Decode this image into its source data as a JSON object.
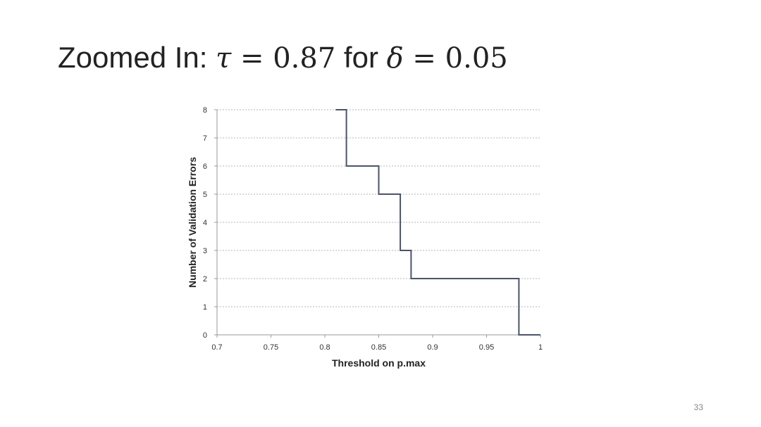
{
  "slide": {
    "title_prefix": "Zoomed In: ",
    "tau_symbol": "τ",
    "equals": " = ",
    "tau_value": "0.87",
    "for_word": " for ",
    "delta_symbol": "δ",
    "delta_value": "0.05",
    "page_number": "33"
  },
  "chart_data": {
    "type": "line",
    "step": true,
    "title": "",
    "xlabel": "Threshold on p.max",
    "ylabel": "Number of Validation Errors",
    "xlim": [
      0.7,
      1.0
    ],
    "ylim": [
      0,
      8
    ],
    "x_ticks": [
      0.7,
      0.75,
      0.8,
      0.85,
      0.9,
      0.95,
      1.0
    ],
    "x_tick_labels": [
      "0.7",
      "0.75",
      "0.8",
      "0.85",
      "0.9",
      "0.95",
      "1"
    ],
    "y_ticks": [
      0,
      1,
      2,
      3,
      4,
      5,
      6,
      7,
      8
    ],
    "y_tick_labels": [
      "0",
      "1",
      "2",
      "3",
      "4",
      "5",
      "6",
      "7",
      "8"
    ],
    "grid": {
      "horizontal": true,
      "style": "dashed"
    },
    "legend": "none",
    "series": [
      {
        "color": "#4a5468",
        "points": [
          [
            0.81,
            8
          ],
          [
            0.82,
            8
          ],
          [
            0.82,
            6
          ],
          [
            0.85,
            6
          ],
          [
            0.85,
            5
          ],
          [
            0.87,
            5
          ],
          [
            0.87,
            3
          ],
          [
            0.88,
            3
          ],
          [
            0.88,
            2
          ],
          [
            0.98,
            2
          ],
          [
            0.98,
            0
          ],
          [
            1.0,
            0
          ]
        ]
      }
    ]
  }
}
